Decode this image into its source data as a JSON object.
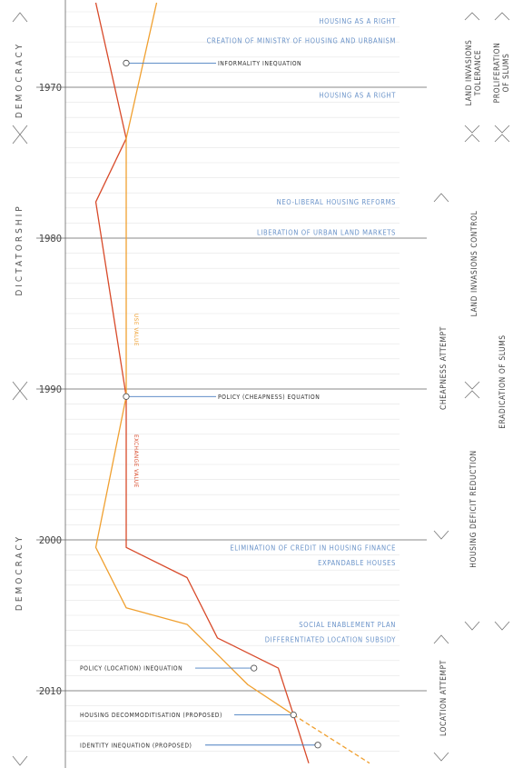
{
  "era_labels": [
    "DEMOCRACY",
    "DICTATORSHIP",
    "DEMOCRACY"
  ],
  "years": [
    {
      "label": "1970",
      "value": 1970
    },
    {
      "label": "1980",
      "value": 1980
    },
    {
      "label": "1990",
      "value": 1990
    },
    {
      "label": "2000",
      "value": 2000
    },
    {
      "label": "2010",
      "value": 2010
    }
  ],
  "events": [
    {
      "label": "HOUSING AS A RIGHT",
      "year": 1965.6
    },
    {
      "label": "CREATION OF MINISTRY OF HOUSING AND URBANISM",
      "year": 1966.9
    },
    {
      "label": "HOUSING AS A RIGHT",
      "year": 1970.5
    },
    {
      "label": "NEO-LIBERAL HOUSING REFORMS",
      "year": 1977.6
    },
    {
      "label": "LIBERATION OF URBAN LAND MARKETS",
      "year": 1979.6
    },
    {
      "label": "ELIMINATION OF CREDIT IN HOUSING FINANCE",
      "year": 2000.5
    },
    {
      "label": "EXPANDABLE HOUSES",
      "year": 2001.5
    },
    {
      "label": "SOCIAL ENABLEMENT PLAN",
      "year": 2005.6
    },
    {
      "label": "DIFFERENTIATED LOCATION SUBSIDY",
      "year": 2006.6
    }
  ],
  "annotations": [
    {
      "label": "INFORMALITY INEQUATION",
      "year": 1968.4
    },
    {
      "label": "POLICY (CHEAPNESS) EQUATION",
      "year": 1990.5
    },
    {
      "label": "POLICY (LOCATION) INEQUATION",
      "year": 2008.5
    },
    {
      "label": "HOUSING DECOMMODITISATION (PROPOSED)",
      "year": 2011.6
    },
    {
      "label": "IDENTITY INEQUATION (PROPOSED)",
      "year": 2013.6
    }
  ],
  "value_labels": {
    "use": "USE VALUE",
    "exchange": "EXCHANGE VALUE"
  },
  "side_labels": {
    "land_tolerance_1": "LAND INVASIONS",
    "land_tolerance_2": "TOLERANCE",
    "slums_1": "PROLIFERATION",
    "slums_2": "OF SLUMS",
    "land_control": "LAND INVASIONS CONTROL",
    "eradication": "ERADICATION OF SLUMS",
    "cheapness": "CHEAPNESS ATTEMPT",
    "deficit": "HOUSING DEFICIT REDUCTION",
    "location": "LOCATION ATTEMPT"
  },
  "colors": {
    "exchange_value": "#d84a2a",
    "use_value": "#f0a030",
    "event_text": "#6a93c9",
    "annotation_line": "#4a7fc0"
  },
  "chart_data": {
    "type": "line",
    "y_axis": "year",
    "ylim": [
      1964.4,
      2014.8
    ],
    "series": [
      {
        "name": "EXCHANGE VALUE",
        "points": [
          [
            -1,
            1964.4
          ],
          [
            0,
            1973.4
          ],
          [
            -1,
            1977.6
          ],
          [
            0,
            1990.5
          ],
          [
            0,
            2000.5
          ],
          [
            2,
            2002.5
          ],
          [
            3,
            2006.5
          ],
          [
            5,
            2008.5
          ],
          [
            5.5,
            2011.6
          ],
          [
            6,
            2014.8
          ]
        ]
      },
      {
        "name": "USE VALUE",
        "points": [
          [
            1,
            1964.4
          ],
          [
            0,
            1973.4
          ],
          [
            0,
            1990.5
          ],
          [
            -1,
            2000.5
          ],
          [
            0,
            2004.5
          ],
          [
            2,
            2005.6
          ],
          [
            4,
            2009.6
          ],
          [
            5.5,
            2011.6
          ]
        ]
      },
      {
        "name": "USE VALUE (PROPOSED)",
        "points": [
          [
            5.5,
            2011.6
          ],
          [
            8,
            2014.8
          ]
        ]
      }
    ]
  }
}
